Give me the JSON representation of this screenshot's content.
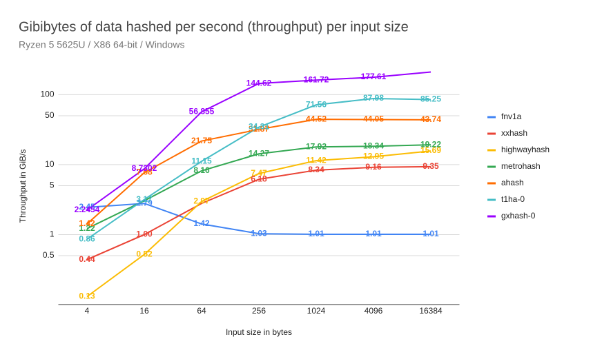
{
  "chart_data": {
    "type": "line",
    "title": "Gibibytes of data hashed per second (throughput) per input size",
    "subtitle": "Ryzen 5 5625U / X86 64-bit / Windows",
    "x_label": "Input size in bytes",
    "y_label": "Throughput in GiB/s",
    "categories": [
      "4",
      "16",
      "64",
      "256",
      "1024",
      "4096",
      "16384"
    ],
    "log_scale": true,
    "grid": true,
    "legend": "right",
    "ylim": [
      0.1,
      250
    ],
    "yticks": [
      0.5,
      1,
      5,
      10,
      50,
      100
    ],
    "series": [
      {
        "name": "fnv1a",
        "color": "#4285f4",
        "values": [
          2.45,
          2.79,
          1.42,
          1.03,
          1.01,
          1.01,
          1.01
        ],
        "value_labels": [
          "2.45",
          "2.79",
          "1.42",
          "1.03",
          "1.01",
          "1.01",
          "1.01"
        ]
      },
      {
        "name": "xxhash",
        "color": "#ea4335",
        "values": [
          0.44,
          1.0,
          2.79,
          6.18,
          8.34,
          9.16,
          9.35
        ],
        "value_labels": [
          "0.44",
          "1.00",
          null,
          "6.18",
          "8.34",
          "9.16",
          "9.35"
        ]
      },
      {
        "name": "highwayhash",
        "color": "#fbbc04",
        "values": [
          0.13,
          0.52,
          2.97,
          7.47,
          11.42,
          12.95,
          15.69
        ],
        "value_labels": [
          "0.13",
          "0.52",
          "2.97",
          "7.47",
          "11.42",
          "12.95",
          "15.69"
        ]
      },
      {
        "name": "metrohash",
        "color": "#34a853",
        "values": [
          1.22,
          3.05,
          8.16,
          14.27,
          17.92,
          18.34,
          19.22
        ],
        "value_labels": [
          "1.22",
          null,
          "8.16",
          "14.27",
          "17.92",
          "18.34",
          "19.22"
        ]
      },
      {
        "name": "ahash",
        "color": "#ff6d01",
        "values": [
          1.42,
          7.68,
          21.75,
          31.87,
          44.52,
          44.05,
          43.74
        ],
        "value_labels": [
          "1.42",
          "7.68",
          "21.75",
          "31.87",
          "44.52",
          "44.05",
          "43.74"
        ]
      },
      {
        "name": "t1ha-0",
        "color": "#46bdc6",
        "values": [
          0.86,
          3.17,
          11.15,
          34.31,
          71.56,
          87.98,
          85.25
        ],
        "value_labels": [
          "0.86",
          "3.17",
          "11.15",
          "34.31",
          "71.56",
          "87.98",
          "85.25"
        ]
      },
      {
        "name": "gxhash-0",
        "color": "#9900ff",
        "values": [
          2.2454,
          8.7302,
          56.855,
          144.62,
          161.72,
          177.61,
          211
        ],
        "value_labels": [
          "2.2454",
          "8.7302",
          "56.855",
          "144.62",
          "161.72",
          "177.61",
          null
        ]
      }
    ]
  }
}
